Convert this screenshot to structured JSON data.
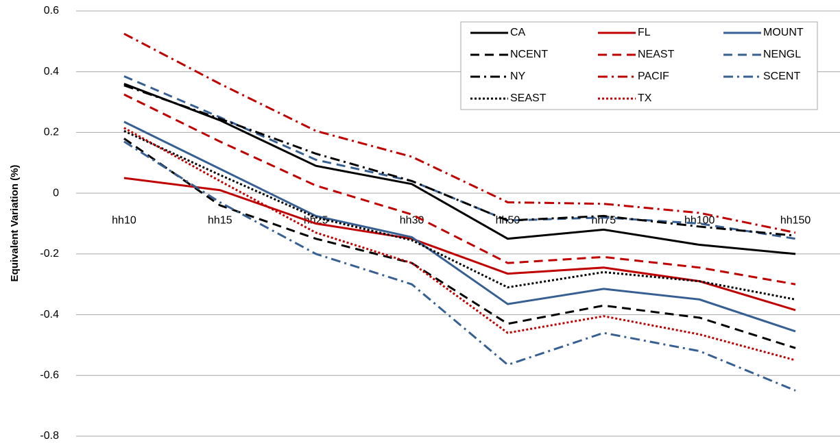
{
  "chart_data": {
    "type": "line",
    "y_label": "Equivalent Variation (%)",
    "categories": [
      "hh10",
      "hh15",
      "hh25",
      "hh30",
      "hh50",
      "hh75",
      "hh100",
      "hh150"
    ],
    "ylim": [
      -0.8,
      0.6
    ],
    "yticks": [
      -0.8,
      -0.6,
      -0.4,
      -0.2,
      0,
      0.2,
      0.4,
      0.6
    ],
    "grid": true,
    "legend": "top-right",
    "series": [
      {
        "name": "CA",
        "color": "#000000",
        "dash": "solid",
        "values": [
          0.36,
          0.24,
          0.09,
          0.03,
          -0.15,
          -0.12,
          -0.17,
          -0.2
        ]
      },
      {
        "name": "FL",
        "color": "#c00000",
        "dash": "solid",
        "values": [
          0.05,
          0.01,
          -0.1,
          -0.15,
          -0.265,
          -0.245,
          -0.29,
          -0.385
        ]
      },
      {
        "name": "MOUNT",
        "color": "#376092",
        "dash": "solid",
        "values": [
          0.235,
          0.08,
          -0.075,
          -0.145,
          -0.365,
          -0.315,
          -0.35,
          -0.455
        ]
      },
      {
        "name": "NCENT",
        "color": "#000000",
        "dash": "dashed",
        "values": [
          0.18,
          -0.04,
          -0.15,
          -0.23,
          -0.43,
          -0.37,
          -0.41,
          -0.51
        ]
      },
      {
        "name": "NEAST",
        "color": "#c00000",
        "dash": "dashed",
        "values": [
          0.325,
          0.17,
          0.025,
          -0.07,
          -0.23,
          -0.21,
          -0.245,
          -0.3
        ]
      },
      {
        "name": "NENGL",
        "color": "#376092",
        "dash": "dashed",
        "values": [
          0.385,
          0.25,
          0.11,
          0.04,
          -0.09,
          -0.08,
          -0.1,
          -0.15
        ]
      },
      {
        "name": "NY",
        "color": "#000000",
        "dash": "dashdot",
        "values": [
          0.355,
          0.245,
          0.13,
          0.04,
          -0.09,
          -0.075,
          -0.11,
          -0.14
        ]
      },
      {
        "name": "PACIF",
        "color": "#c00000",
        "dash": "dashdot",
        "values": [
          0.525,
          0.36,
          0.205,
          0.12,
          -0.03,
          -0.035,
          -0.065,
          -0.13
        ]
      },
      {
        "name": "SCENT",
        "color": "#376092",
        "dash": "dashdot",
        "values": [
          0.17,
          -0.03,
          -0.2,
          -0.3,
          -0.565,
          -0.46,
          -0.52,
          -0.65
        ]
      },
      {
        "name": "SEAST",
        "color": "#000000",
        "dash": "dotted",
        "values": [
          0.205,
          0.06,
          -0.08,
          -0.155,
          -0.31,
          -0.26,
          -0.29,
          -0.35
        ]
      },
      {
        "name": "TX",
        "color": "#c00000",
        "dash": "dotted",
        "values": [
          0.215,
          0.04,
          -0.13,
          -0.23,
          -0.46,
          -0.405,
          -0.465,
          -0.55
        ]
      }
    ]
  }
}
